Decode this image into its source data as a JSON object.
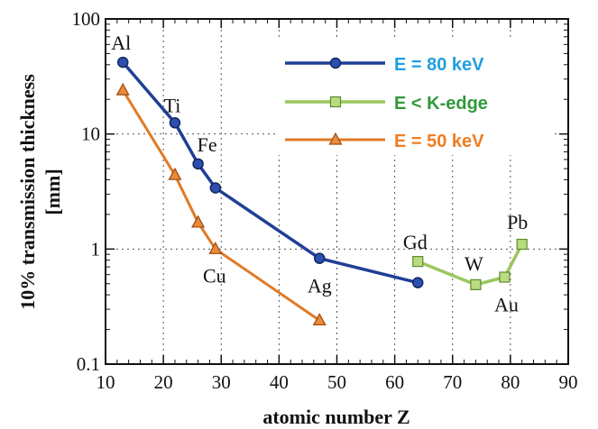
{
  "chart_data": {
    "type": "line",
    "xlabel": "atomic number Z",
    "ylabel_line1": "10% transmission thickness",
    "ylabel_line2": "[mm]",
    "xlim": [
      10,
      90
    ],
    "ylim": [
      0.1,
      100
    ],
    "yscale": "log",
    "x_ticks": [
      10,
      20,
      30,
      40,
      50,
      60,
      70,
      80,
      90
    ],
    "x_tick_labels": [
      "10",
      "20",
      "30",
      "40",
      "50",
      "60",
      "70",
      "80",
      "90"
    ],
    "y_ticks": [
      0.1,
      1,
      10,
      100
    ],
    "y_tick_labels": [
      "0.1",
      "1",
      "10",
      "100"
    ],
    "grid": true,
    "legend_position": "top-right",
    "series": [
      {
        "name": "E = 80 keV",
        "color": "#1f3f96",
        "marker": "circle",
        "x": [
          13,
          22,
          26,
          29,
          47,
          64
        ],
        "y": [
          42,
          12.5,
          5.5,
          3.4,
          0.83,
          0.51
        ]
      },
      {
        "name": "E < K-edge",
        "color": "#9bc75d",
        "marker": "square",
        "x": [
          64,
          74,
          79,
          82
        ],
        "y": [
          0.78,
          0.49,
          0.57,
          1.1
        ]
      },
      {
        "name": "E = 50 keV",
        "color": "#e07b27",
        "marker": "triangle",
        "x": [
          13,
          22,
          26,
          29,
          47
        ],
        "y": [
          24,
          4.4,
          1.7,
          1.0,
          0.24
        ]
      }
    ],
    "legend_text_colors": [
      "#1f9fe0",
      "#2f9a3a",
      "#f07d20"
    ],
    "element_labels": [
      "Al",
      "Ti",
      "Fe",
      "Cu",
      "Ag",
      "Gd",
      "W",
      "Au",
      "Pb"
    ]
  }
}
